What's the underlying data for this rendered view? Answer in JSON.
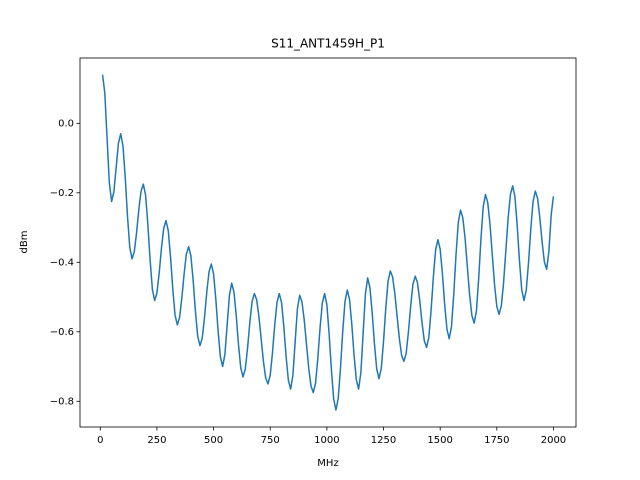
{
  "chart_data": {
    "type": "line",
    "title": "S11_ANT1459H_P1",
    "xlabel": "MHz",
    "ylabel": "dBm",
    "x": [
      10,
      20,
      30,
      40,
      50,
      60,
      70,
      80,
      90,
      100,
      110,
      120,
      130,
      140,
      150,
      160,
      170,
      180,
      190,
      200,
      210,
      220,
      230,
      240,
      250,
      260,
      270,
      280,
      290,
      300,
      310,
      320,
      330,
      340,
      350,
      360,
      370,
      380,
      390,
      400,
      410,
      420,
      430,
      440,
      450,
      460,
      470,
      480,
      490,
      500,
      510,
      520,
      530,
      540,
      550,
      560,
      570,
      580,
      590,
      600,
      610,
      620,
      630,
      640,
      650,
      660,
      670,
      680,
      690,
      700,
      710,
      720,
      730,
      740,
      750,
      760,
      770,
      780,
      790,
      800,
      810,
      820,
      830,
      840,
      850,
      860,
      870,
      880,
      890,
      900,
      910,
      920,
      930,
      940,
      950,
      960,
      970,
      980,
      990,
      1000,
      1010,
      1020,
      1030,
      1040,
      1050,
      1060,
      1070,
      1080,
      1090,
      1100,
      1110,
      1120,
      1130,
      1140,
      1150,
      1160,
      1170,
      1180,
      1190,
      1200,
      1210,
      1220,
      1230,
      1240,
      1250,
      1260,
      1270,
      1280,
      1290,
      1300,
      1310,
      1320,
      1330,
      1340,
      1350,
      1360,
      1370,
      1380,
      1390,
      1400,
      1410,
      1420,
      1430,
      1440,
      1450,
      1460,
      1470,
      1480,
      1490,
      1500,
      1510,
      1520,
      1530,
      1540,
      1550,
      1560,
      1570,
      1580,
      1590,
      1600,
      1610,
      1620,
      1630,
      1640,
      1650,
      1660,
      1670,
      1680,
      1690,
      1700,
      1710,
      1720,
      1730,
      1740,
      1750,
      1760,
      1770,
      1780,
      1790,
      1800,
      1810,
      1820,
      1830,
      1840,
      1850,
      1860,
      1870,
      1880,
      1890,
      1900,
      1910,
      1920,
      1930,
      1940,
      1950,
      1960,
      1970,
      1980,
      1990,
      2000
    ],
    "series": [
      {
        "name": "S11",
        "color": "#1f77b4",
        "values": [
          0.14,
          0.087,
          -0.043,
          -0.172,
          -0.225,
          -0.197,
          -0.128,
          -0.058,
          -0.03,
          -0.064,
          -0.154,
          -0.266,
          -0.356,
          -0.39,
          -0.37,
          -0.316,
          -0.249,
          -0.195,
          -0.175,
          -0.207,
          -0.291,
          -0.394,
          -0.478,
          -0.51,
          -0.488,
          -0.431,
          -0.359,
          -0.302,
          -0.28,
          -0.309,
          -0.384,
          -0.477,
          -0.552,
          -0.58,
          -0.559,
          -0.502,
          -0.433,
          -0.376,
          -0.355,
          -0.382,
          -0.453,
          -0.542,
          -0.613,
          -0.64,
          -0.618,
          -0.559,
          -0.486,
          -0.427,
          -0.405,
          -0.433,
          -0.507,
          -0.598,
          -0.672,
          -0.7,
          -0.665,
          -0.58,
          -0.495,
          -0.46,
          -0.486,
          -0.553,
          -0.637,
          -0.704,
          -0.73,
          -0.707,
          -0.647,
          -0.573,
          -0.513,
          -0.49,
          -0.507,
          -0.555,
          -0.62,
          -0.685,
          -0.733,
          -0.75,
          -0.725,
          -0.66,
          -0.58,
          -0.515,
          -0.49,
          -0.516,
          -0.585,
          -0.67,
          -0.739,
          -0.765,
          -0.726,
          -0.63,
          -0.534,
          -0.495,
          -0.514,
          -0.565,
          -0.635,
          -0.705,
          -0.756,
          -0.775,
          -0.748,
          -0.677,
          -0.588,
          -0.517,
          -0.49,
          -0.522,
          -0.606,
          -0.709,
          -0.793,
          -0.825,
          -0.792,
          -0.706,
          -0.599,
          -0.513,
          -0.48,
          -0.507,
          -0.578,
          -0.667,
          -0.738,
          -0.765,
          -0.718,
          -0.605,
          -0.492,
          -0.445,
          -0.473,
          -0.545,
          -0.635,
          -0.707,
          -0.735,
          -0.706,
          -0.628,
          -0.532,
          -0.454,
          -0.425,
          -0.442,
          -0.49,
          -0.555,
          -0.62,
          -0.668,
          -0.685,
          -0.662,
          -0.6,
          -0.525,
          -0.463,
          -0.44,
          -0.459,
          -0.511,
          -0.574,
          -0.626,
          -0.645,
          -0.616,
          -0.538,
          -0.442,
          -0.364,
          -0.335,
          -0.362,
          -0.433,
          -0.522,
          -0.593,
          -0.62,
          -0.585,
          -0.492,
          -0.378,
          -0.285,
          -0.25,
          -0.272,
          -0.331,
          -0.413,
          -0.494,
          -0.553,
          -0.575,
          -0.54,
          -0.447,
          -0.333,
          -0.24,
          -0.205,
          -0.228,
          -0.291,
          -0.378,
          -0.464,
          -0.527,
          -0.55,
          -0.525,
          -0.458,
          -0.365,
          -0.273,
          -0.205,
          -0.18,
          -0.211,
          -0.294,
          -0.396,
          -0.479,
          -0.51,
          -0.48,
          -0.401,
          -0.304,
          -0.225,
          -0.195,
          -0.216,
          -0.273,
          -0.342,
          -0.399,
          -0.42,
          -0.368,
          -0.263,
          -0.21
        ]
      }
    ],
    "xlim": [
      -89.5,
      2099.5
    ],
    "xticks": [
      0,
      250,
      500,
      750,
      1000,
      1250,
      1500,
      1750,
      2000
    ],
    "ylim": [
      -0.874,
      0.188
    ],
    "yticks": [
      {
        "value": -0.8,
        "label": "−0.8"
      },
      {
        "value": -0.6,
        "label": "−0.6"
      },
      {
        "value": -0.4,
        "label": "−0.4"
      },
      {
        "value": -0.2,
        "label": "−0.2"
      },
      {
        "value": 0,
        "label": "0.0"
      }
    ],
    "grid": false
  }
}
